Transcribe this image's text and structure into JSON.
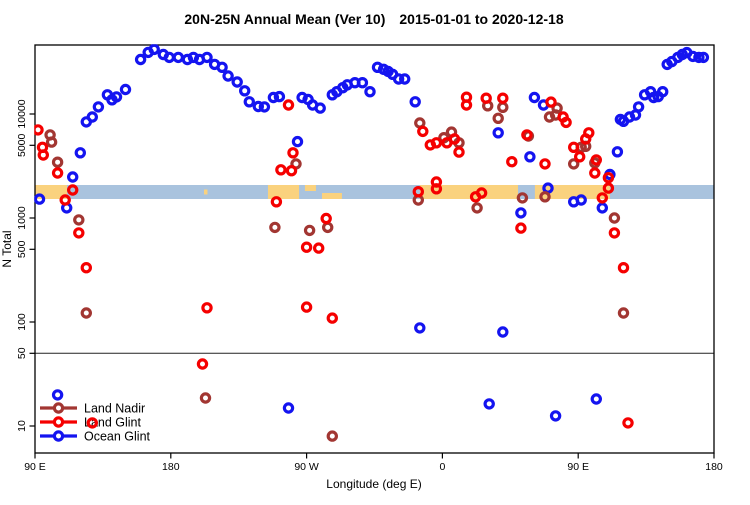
{
  "title": "20N-25N Annual Mean (Ver 10)  2015-01-01 to 2020-12-18",
  "legend": {
    "items": [
      {
        "label": "Land Nadir",
        "color": "#A23632"
      },
      {
        "label": "Land Glint",
        "color": "#F50000"
      },
      {
        "label": "Ocean Glint",
        "color": "#1414F0"
      }
    ]
  },
  "map_strip": {
    "description": "world land/ocean strip drawn across plot near N=1800",
    "ocean_color": "#A9C3DE",
    "land_color": "#FAD27E",
    "center_value": 1800,
    "land_segments": [
      {
        "from": 90,
        "to": 111.2,
        "band": "full"
      },
      {
        "from": 202,
        "to": 204.3,
        "band": "mid"
      },
      {
        "from": 244.4,
        "to": 265,
        "band": "full"
      },
      {
        "from": 268.9,
        "to": 276.2,
        "band": "top"
      },
      {
        "from": 280.2,
        "to": 293.4,
        "band": "bottom"
      },
      {
        "from": 345.1,
        "to": 410.1,
        "band": "full"
      },
      {
        "from": 421.3,
        "to": 471,
        "band": "full"
      }
    ]
  },
  "chart_data": {
    "type": "scatter",
    "title": "20N-25N Annual Mean (Ver 10)  2015-01-01 to 2020-12-18",
    "x_axis": {
      "label": "Longitude (deg E)",
      "domain": [
        90,
        540
      ],
      "tick_values": [
        90,
        180,
        270,
        360,
        450,
        540
      ],
      "tick_labels": [
        "90 E",
        "180",
        "90 W",
        "0",
        "90 E",
        "180"
      ]
    },
    "y_axis": {
      "label": "N Total",
      "scale": "log",
      "tick_values": [
        10,
        50,
        100,
        500,
        1000,
        5000,
        10000
      ],
      "tick_labels": [
        "10",
        "50",
        "100",
        "500",
        "1000",
        "5000",
        "10000"
      ],
      "range": [
        5.5,
        46000
      ],
      "reference_line": 50
    },
    "series": [
      {
        "name": "Land Nadir",
        "color": "#A23632",
        "points": [
          [
            100,
            6300
          ],
          [
            101,
            5370
          ],
          [
            105,
            3440
          ],
          [
            119,
            959
          ],
          [
            124,
            122
          ],
          [
            203,
            18.6
          ],
          [
            249,
            812
          ],
          [
            263,
            3310
          ],
          [
            272,
            760
          ],
          [
            284,
            812
          ],
          [
            287,
            8
          ],
          [
            344,
            1490
          ],
          [
            345,
            8200
          ],
          [
            361,
            5920
          ],
          [
            366,
            6700
          ],
          [
            371,
            5280
          ],
          [
            383,
            1250
          ],
          [
            390,
            12000
          ],
          [
            397,
            9100
          ],
          [
            400,
            11600
          ],
          [
            413,
            1560
          ],
          [
            417,
            6140
          ],
          [
            428,
            1600
          ],
          [
            431,
            9350
          ],
          [
            435,
            9780
          ],
          [
            436,
            11400
          ],
          [
            447,
            3310
          ],
          [
            452,
            4780
          ],
          [
            455,
            4890
          ],
          [
            461,
            3390
          ],
          [
            474,
            1000
          ],
          [
            480,
            122
          ]
        ]
      },
      {
        "name": "Land Glint",
        "color": "#F50000",
        "points": [
          [
            92,
            7040
          ],
          [
            95,
            4780
          ],
          [
            95.5,
            4030
          ],
          [
            105,
            2710
          ],
          [
            110,
            1490
          ],
          [
            115,
            1860
          ],
          [
            119,
            719
          ],
          [
            124,
            333
          ],
          [
            128,
            10.7
          ],
          [
            201,
            39.5
          ],
          [
            204,
            137
          ],
          [
            250,
            1430
          ],
          [
            253,
            2910
          ],
          [
            258,
            12200
          ],
          [
            260,
            2850
          ],
          [
            261,
            4240
          ],
          [
            270,
            524
          ],
          [
            270,
            139
          ],
          [
            278,
            513
          ],
          [
            283,
            990
          ],
          [
            287,
            109
          ],
          [
            344,
            1790
          ],
          [
            347,
            6800
          ],
          [
            352,
            5050
          ],
          [
            356,
            5280
          ],
          [
            356,
            2220
          ],
          [
            356,
            1910
          ],
          [
            363,
            5280
          ],
          [
            368,
            5750
          ],
          [
            371,
            4300
          ],
          [
            376,
            14500
          ],
          [
            376,
            12200
          ],
          [
            382,
            1600
          ],
          [
            386,
            1740
          ],
          [
            389,
            14200
          ],
          [
            400,
            14200
          ],
          [
            406,
            3480
          ],
          [
            412,
            800
          ],
          [
            416,
            6300
          ],
          [
            428,
            3310
          ],
          [
            432,
            13000
          ],
          [
            440,
            9350
          ],
          [
            442,
            8300
          ],
          [
            447,
            4780
          ],
          [
            451,
            3880
          ],
          [
            455,
            5750
          ],
          [
            457,
            6600
          ],
          [
            461,
            2710
          ],
          [
            462,
            3620
          ],
          [
            466,
            1560
          ],
          [
            470,
            2440
          ],
          [
            470,
            1940
          ],
          [
            474,
            719
          ],
          [
            480,
            333
          ],
          [
            483,
            10.7
          ]
        ]
      },
      {
        "name": "Ocean Glint",
        "color": "#1414F0",
        "points": [
          [
            93,
            1520
          ],
          [
            105,
            19.9
          ],
          [
            111,
            1250
          ],
          [
            115,
            2480
          ],
          [
            120,
            4240
          ],
          [
            124,
            8400
          ],
          [
            128,
            9350
          ],
          [
            132,
            11700
          ],
          [
            138,
            15300
          ],
          [
            141,
            13700
          ],
          [
            144,
            14600
          ],
          [
            150,
            17200
          ],
          [
            160,
            33400
          ],
          [
            165,
            39100
          ],
          [
            169,
            41800
          ],
          [
            175,
            37300
          ],
          [
            179,
            35000
          ],
          [
            185,
            35000
          ],
          [
            191,
            33400
          ],
          [
            195,
            35000
          ],
          [
            199,
            33400
          ],
          [
            204,
            35000
          ],
          [
            209,
            30000
          ],
          [
            214,
            28100
          ],
          [
            218,
            23200
          ],
          [
            224,
            20300
          ],
          [
            229,
            16700
          ],
          [
            232,
            13100
          ],
          [
            238,
            11800
          ],
          [
            242,
            11700
          ],
          [
            248,
            14400
          ],
          [
            252,
            14700
          ],
          [
            258,
            14.9
          ],
          [
            264,
            5430
          ],
          [
            267,
            14400
          ],
          [
            271,
            13800
          ],
          [
            274,
            12200
          ],
          [
            279,
            11400
          ],
          [
            287,
            15300
          ],
          [
            290,
            16400
          ],
          [
            294,
            17900
          ],
          [
            297,
            19100
          ],
          [
            302,
            20000
          ],
          [
            307,
            20000
          ],
          [
            312,
            16400
          ],
          [
            317,
            28100
          ],
          [
            321,
            26900
          ],
          [
            324,
            25700
          ],
          [
            327,
            24100
          ],
          [
            331,
            21700
          ],
          [
            335,
            21700
          ],
          [
            342,
            13100
          ],
          [
            345,
            87.7
          ],
          [
            391,
            16.3
          ],
          [
            397,
            6600
          ],
          [
            400,
            80.2
          ],
          [
            412,
            1120
          ],
          [
            418,
            3880
          ],
          [
            421,
            14400
          ],
          [
            427,
            12200
          ],
          [
            430,
            1940
          ],
          [
            435,
            12.5
          ],
          [
            447,
            1430
          ],
          [
            452,
            1490
          ],
          [
            462,
            18.2
          ],
          [
            466,
            1250
          ],
          [
            471,
            2620
          ],
          [
            476,
            4330
          ],
          [
            478,
            8880
          ],
          [
            480,
            8500
          ],
          [
            484,
            9350
          ],
          [
            488,
            9780
          ],
          [
            490,
            11700
          ],
          [
            494,
            15300
          ],
          [
            498,
            16400
          ],
          [
            500,
            14400
          ],
          [
            503,
            14700
          ],
          [
            506,
            16400
          ],
          [
            509,
            30000
          ],
          [
            512,
            31900
          ],
          [
            516,
            35000
          ],
          [
            519,
            37300
          ],
          [
            522,
            38900
          ],
          [
            526,
            35800
          ],
          [
            530,
            35000
          ],
          [
            533,
            35000
          ]
        ]
      },
      {
        "name": "draw_order_note",
        "color": "",
        "points": []
      }
    ],
    "legend_position": "bottom-left",
    "grid": false
  }
}
